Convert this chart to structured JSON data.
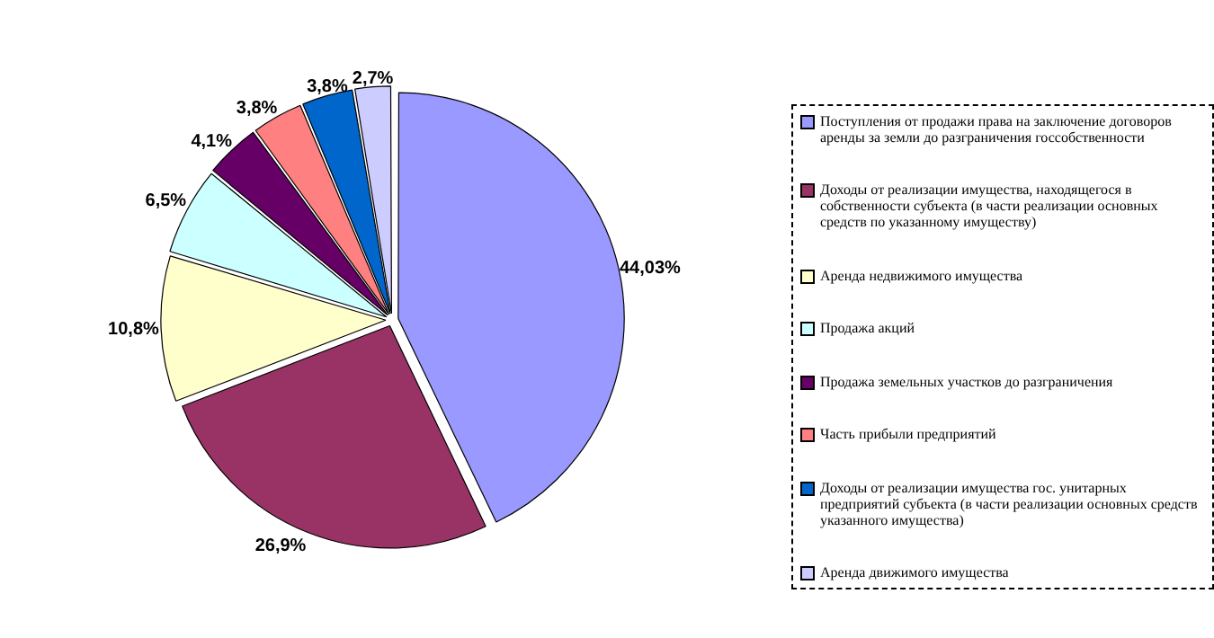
{
  "chart_data": {
    "type": "pie",
    "categories": [
      "Поступления от продажи права на заключение договоров аренды за земли до разграничения госсобственности",
      "Доходы от реализации имущества, находящегося в собственности субъекта (в части реализации основных средств по указанному имуществу)",
      "Аренда недвижимого имущества",
      "Продажа акций",
      "Продажа земельных участков до разграничения",
      "Часть прибыли предприятий",
      "Доходы от реализации имущества гос. унитарных предприятий субъекта (в части реализации основных средств указанного имущества)",
      "Аренда движимого имущества"
    ],
    "values": [
      44.03,
      26.9,
      10.8,
      6.5,
      4.1,
      3.8,
      3.8,
      2.7
    ],
    "value_labels": [
      "44,03%",
      "26,9%",
      "10,8%",
      "6,5%",
      "4,1%",
      "3,8%",
      "3,8%",
      "2,7%"
    ],
    "colors": [
      "#9999ff",
      "#993366",
      "#ffffcc",
      "#ccffff",
      "#660066",
      "#ff8080",
      "#0066cc",
      "#ccccff"
    ],
    "legend": "right"
  }
}
